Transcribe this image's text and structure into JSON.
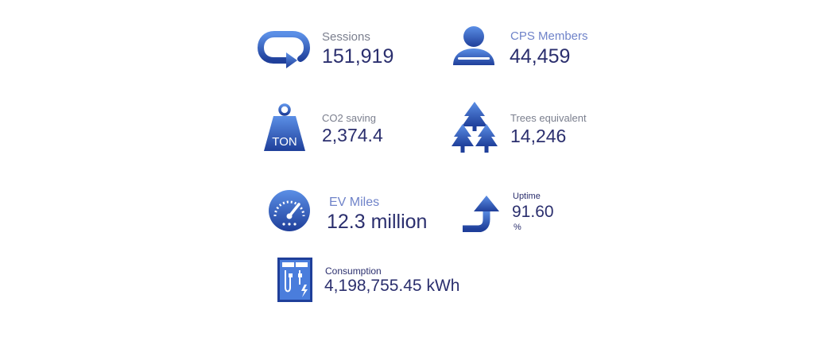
{
  "stats": {
    "sessions": {
      "label": "Sessions",
      "value": "151,919",
      "icon": "refresh-arrow-icon"
    },
    "cps_members": {
      "label": "CPS Members",
      "value": "44,459",
      "icon": "user-icon"
    },
    "co2_saving": {
      "label": "CO2 saving",
      "value": "2,374.4",
      "icon": "weight-ton-icon",
      "icon_text": "TON"
    },
    "trees_equivalent": {
      "label": "Trees equivalent",
      "value": "14,246",
      "icon": "trees-icon"
    },
    "ev_miles": {
      "label": "EV Miles",
      "value": "12.3 million",
      "icon": "speedometer-icon"
    },
    "uptime": {
      "label": "Uptime",
      "value": "91.60",
      "unit": "%",
      "icon": "up-turn-arrow-icon"
    },
    "consumption": {
      "label": "Consumption",
      "value": "4,198,755.45 kWh",
      "icon": "charging-station-icon"
    }
  },
  "colors": {
    "icon_light": "#5b8fe6",
    "icon_dark": "#1f3f9a",
    "value_text": "#2b2f6e",
    "label_text": "#7b7f8e",
    "label_accent": "#6f83c9"
  }
}
